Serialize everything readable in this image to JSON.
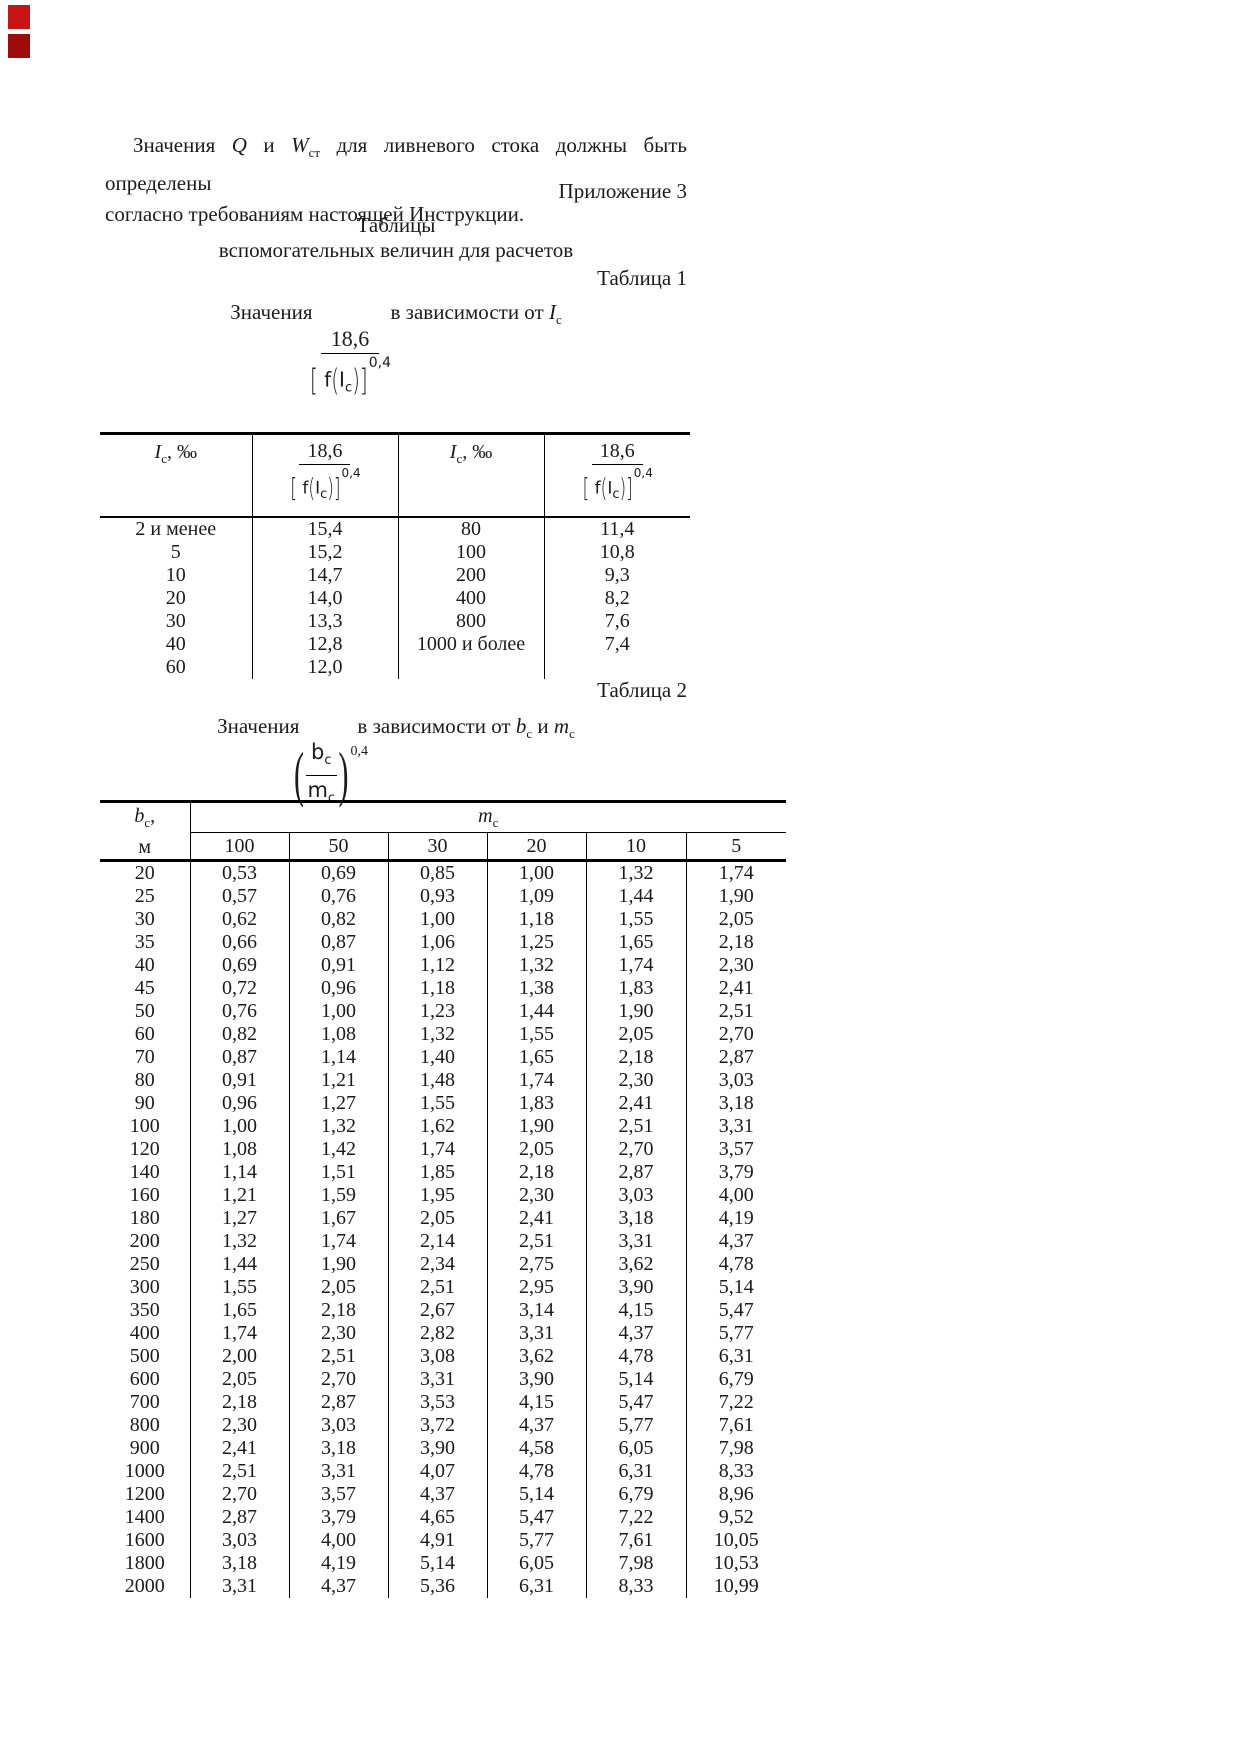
{
  "page": {
    "markers": {
      "top_color": "#c81414",
      "bottom_color": "#9e0b0b"
    },
    "paragraph": {
      "p_start": "Значения",
      "p_q": "Q",
      "p_and": "и",
      "p_w": "W",
      "p_w_sub": "ст",
      "p_rest1": "для ливневого стока должны быть определены",
      "p_line2": "согласно требованиям настоящей Инструкции."
    },
    "appendix_label": "Приложение 3",
    "title_line1": "Таблицы",
    "title_line2": "вспомогательных величин для расчетов"
  },
  "formula_coef": {
    "num": "18,6",
    "lbracket": "[",
    "den_f": "f",
    "lparen": "(",
    "den_var": "I",
    "den_sub": "c",
    "rparen": ")",
    "rbracket": "]",
    "exp": "0,4"
  },
  "table1": {
    "label": "Таблица 1",
    "caption": {
      "prefix": "Значения",
      "suffix": "в зависимости от ",
      "var": "I",
      "var_sub": "c"
    },
    "header": {
      "ic": {
        "var": "I",
        "sub": "c",
        "unit": ", ‰"
      }
    },
    "rows": [
      [
        "2 и менее",
        "15,4",
        "80",
        "11,4"
      ],
      [
        "5",
        "15,2",
        "100",
        "10,8"
      ],
      [
        "10",
        "14,7",
        "200",
        "9,3"
      ],
      [
        "20",
        "14,0",
        "400",
        "8,2"
      ],
      [
        "30",
        "13,3",
        "800",
        "7,6"
      ],
      [
        "40",
        "12,8",
        "1000 и более",
        "7,4"
      ],
      [
        "60",
        "12,0",
        "",
        ""
      ]
    ]
  },
  "formula_ratio": {
    "num": "b",
    "num_sub": "c",
    "den": "m",
    "den_sub": "c",
    "exp": "0,4"
  },
  "table2": {
    "label": "Таблица 2",
    "caption": {
      "prefix": "Значения",
      "suffix": "в зависимости от ",
      "var1": "b",
      "var1_sub": "c",
      "conj": " и ",
      "var2": "m",
      "var2_sub": "c"
    },
    "corner": {
      "var": "b",
      "sub": "c",
      "comma": ",",
      "unit": "м"
    },
    "group": {
      "var": "m",
      "sub": "c"
    },
    "col_headers": [
      "100",
      "50",
      "30",
      "20",
      "10",
      "5"
    ],
    "rows": [
      [
        "20",
        "0,53",
        "0,69",
        "0,85",
        "1,00",
        "1,32",
        "1,74"
      ],
      [
        "25",
        "0,57",
        "0,76",
        "0,93",
        "1,09",
        "1,44",
        "1,90"
      ],
      [
        "30",
        "0,62",
        "0,82",
        "1,00",
        "1,18",
        "1,55",
        "2,05"
      ],
      [
        "35",
        "0,66",
        "0,87",
        "1,06",
        "1,25",
        "1,65",
        "2,18"
      ],
      [
        "40",
        "0,69",
        "0,91",
        "1,12",
        "1,32",
        "1,74",
        "2,30"
      ],
      [
        "45",
        "0,72",
        "0,96",
        "1,18",
        "1,38",
        "1,83",
        "2,41"
      ],
      [
        "50",
        "0,76",
        "1,00",
        "1,23",
        "1,44",
        "1,90",
        "2,51"
      ],
      [
        "60",
        "0,82",
        "1,08",
        "1,32",
        "1,55",
        "2,05",
        "2,70"
      ],
      [
        "70",
        "0,87",
        "1,14",
        "1,40",
        "1,65",
        "2,18",
        "2,87"
      ],
      [
        "80",
        "0,91",
        "1,21",
        "1,48",
        "1,74",
        "2,30",
        "3,03"
      ],
      [
        "90",
        "0,96",
        "1,27",
        "1,55",
        "1,83",
        "2,41",
        "3,18"
      ],
      [
        "100",
        "1,00",
        "1,32",
        "1,62",
        "1,90",
        "2,51",
        "3,31"
      ],
      [
        "120",
        "1,08",
        "1,42",
        "1,74",
        "2,05",
        "2,70",
        "3,57"
      ],
      [
        "140",
        "1,14",
        "1,51",
        "1,85",
        "2,18",
        "2,87",
        "3,79"
      ],
      [
        "160",
        "1,21",
        "1,59",
        "1,95",
        "2,30",
        "3,03",
        "4,00"
      ],
      [
        "180",
        "1,27",
        "1,67",
        "2,05",
        "2,41",
        "3,18",
        "4,19"
      ],
      [
        "200",
        "1,32",
        "1,74",
        "2,14",
        "2,51",
        "3,31",
        "4,37"
      ],
      [
        "250",
        "1,44",
        "1,90",
        "2,34",
        "2,75",
        "3,62",
        "4,78"
      ],
      [
        "300",
        "1,55",
        "2,05",
        "2,51",
        "2,95",
        "3,90",
        "5,14"
      ],
      [
        "350",
        "1,65",
        "2,18",
        "2,67",
        "3,14",
        "4,15",
        "5,47"
      ],
      [
        "400",
        "1,74",
        "2,30",
        "2,82",
        "3,31",
        "4,37",
        "5,77"
      ],
      [
        "500",
        "2,00",
        "2,51",
        "3,08",
        "3,62",
        "4,78",
        "6,31"
      ],
      [
        "600",
        "2,05",
        "2,70",
        "3,31",
        "3,90",
        "5,14",
        "6,79"
      ],
      [
        "700",
        "2,18",
        "2,87",
        "3,53",
        "4,15",
        "5,47",
        "7,22"
      ],
      [
        "800",
        "2,30",
        "3,03",
        "3,72",
        "4,37",
        "5,77",
        "7,61"
      ],
      [
        "900",
        "2,41",
        "3,18",
        "3,90",
        "4,58",
        "6,05",
        "7,98"
      ],
      [
        "1000",
        "2,51",
        "3,31",
        "4,07",
        "4,78",
        "6,31",
        "8,33"
      ],
      [
        "1200",
        "2,70",
        "3,57",
        "4,37",
        "5,14",
        "6,79",
        "8,96"
      ],
      [
        "1400",
        "2,87",
        "3,79",
        "4,65",
        "5,47",
        "7,22",
        "9,52"
      ],
      [
        "1600",
        "3,03",
        "4,00",
        "4,91",
        "5,77",
        "7,61",
        "10,05"
      ],
      [
        "1800",
        "3,18",
        "4,19",
        "5,14",
        "6,05",
        "7,98",
        "10,53"
      ],
      [
        "2000",
        "3,31",
        "4,37",
        "5,36",
        "6,31",
        "8,33",
        "10,99"
      ]
    ]
  }
}
